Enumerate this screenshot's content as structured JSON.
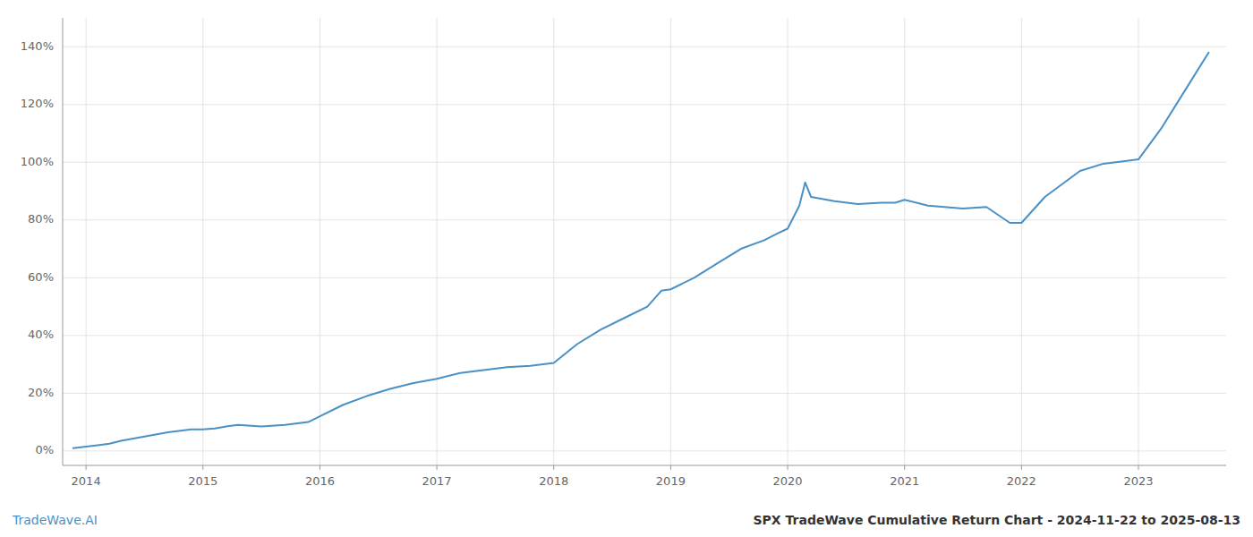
{
  "chart_data": {
    "type": "line",
    "title": "SPX TradeWave Cumulative Return Chart - 2024-11-22 to 2025-08-13",
    "annotations": [
      {
        "text": "TradeWave.AI",
        "color": "#4a90c4"
      }
    ],
    "color": "#4a90c4",
    "grid": true,
    "x": [
      2013.89,
      2014.0,
      2014.1,
      2014.2,
      2014.3,
      2014.5,
      2014.7,
      2014.9,
      2015.0,
      2015.1,
      2015.2,
      2015.3,
      2015.5,
      2015.7,
      2015.9,
      2016.0,
      2016.2,
      2016.4,
      2016.6,
      2016.8,
      2017.0,
      2017.2,
      2017.4,
      2017.6,
      2017.8,
      2018.0,
      2018.2,
      2018.4,
      2018.6,
      2018.8,
      2018.92,
      2019.0,
      2019.2,
      2019.4,
      2019.6,
      2019.8,
      2019.92,
      2020.0,
      2020.1,
      2020.15,
      2020.2,
      2020.4,
      2020.6,
      2020.8,
      2020.92,
      2021.0,
      2021.2,
      2021.5,
      2021.7,
      2021.9,
      2022.0,
      2022.2,
      2022.5,
      2022.7,
      2022.9,
      2023.0,
      2023.2,
      2023.4,
      2023.6
    ],
    "values": [
      1.0,
      1.5,
      2.0,
      2.5,
      3.5,
      5.0,
      6.5,
      7.5,
      7.5,
      7.8,
      8.5,
      9.0,
      8.5,
      9.0,
      10.0,
      12.0,
      16.0,
      19.0,
      21.5,
      23.5,
      25.0,
      27.0,
      28.0,
      29.0,
      29.5,
      30.5,
      37.0,
      42.0,
      46.0,
      50.0,
      55.5,
      56.0,
      60.0,
      65.0,
      70.0,
      73.0,
      75.5,
      77.0,
      85.0,
      93.0,
      88.0,
      86.5,
      85.5,
      86.0,
      86.0,
      87.0,
      85.0,
      84.0,
      84.5,
      79.0,
      79.0,
      88.0,
      97.0,
      99.5,
      100.5,
      101.0,
      112.0,
      125.0,
      138.0
    ],
    "xlim": [
      2013.8,
      2023.75
    ],
    "ylim": [
      -5,
      150
    ],
    "xticks": [
      2014,
      2015,
      2016,
      2017,
      2018,
      2019,
      2020,
      2021,
      2022,
      2023
    ],
    "yticks": [
      {
        "value": 0,
        "label": "0%"
      },
      {
        "value": 20,
        "label": "20%"
      },
      {
        "value": 40,
        "label": "40%"
      },
      {
        "value": 60,
        "label": "60%"
      },
      {
        "value": 80,
        "label": "80%"
      },
      {
        "value": 100,
        "label": "100%"
      },
      {
        "value": 120,
        "label": "120%"
      },
      {
        "value": 140,
        "label": "140%"
      }
    ]
  }
}
